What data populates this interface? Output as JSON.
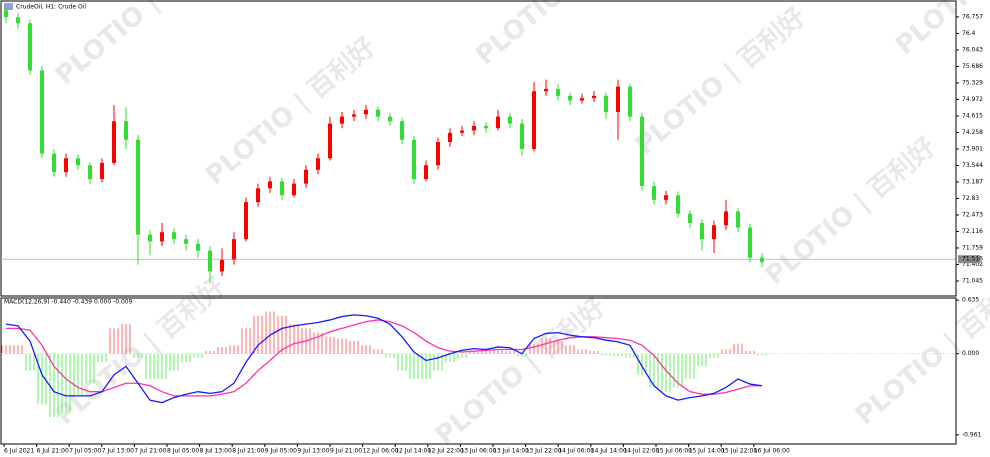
{
  "watermark": "PLOTIO | 百利好",
  "chart_data": [
    {
      "type": "candlestick",
      "title": "CrudeOil, H1:  Crude Oil",
      "up_color": "#ff0000",
      "down_color": "#33dd33",
      "open": [
        76.9,
        76.75,
        76.62,
        75.6,
        73.8,
        73.4,
        73.7,
        73.55,
        73.25,
        73.6,
        74.5,
        74.1,
        72.05,
        71.9,
        72.1,
        71.95,
        71.85,
        71.7,
        71.25,
        71.5,
        71.95,
        72.75,
        73.05,
        73.2,
        72.9,
        73.15,
        73.45,
        73.7,
        74.45,
        74.6,
        74.65,
        74.75,
        74.6,
        74.5,
        74.1,
        73.25,
        73.55,
        74.05,
        74.25,
        74.3,
        74.4,
        74.35,
        74.6,
        74.45,
        73.9,
        75.15,
        75.2,
        75.05,
        74.95,
        75.0,
        75.05,
        74.7,
        75.25,
        74.6,
        73.1,
        72.8,
        72.9,
        72.5,
        72.3,
        71.95,
        72.25,
        72.55,
        72.2,
        71.55
      ],
      "high": [
        76.98,
        76.85,
        76.7,
        75.7,
        73.9,
        73.8,
        73.78,
        73.62,
        73.7,
        74.85,
        74.8,
        74.2,
        72.15,
        72.3,
        72.2,
        72.05,
        71.95,
        71.8,
        71.75,
        72.1,
        72.85,
        73.15,
        73.3,
        73.28,
        73.25,
        73.55,
        73.8,
        74.6,
        74.7,
        74.75,
        74.85,
        74.82,
        74.68,
        74.58,
        74.18,
        73.65,
        74.15,
        74.35,
        74.4,
        74.5,
        74.48,
        74.75,
        74.68,
        74.55,
        75.35,
        75.4,
        75.3,
        75.12,
        75.1,
        75.15,
        75.12,
        75.4,
        75.32,
        74.68,
        73.2,
        73.0,
        72.98,
        72.58,
        72.38,
        72.35,
        72.8,
        72.62,
        72.28,
        71.65
      ],
      "low": [
        76.62,
        76.5,
        75.5,
        73.7,
        73.3,
        73.3,
        73.45,
        73.15,
        73.18,
        73.55,
        73.9,
        71.4,
        71.6,
        71.8,
        71.85,
        71.7,
        71.55,
        71.0,
        71.15,
        71.4,
        71.9,
        72.65,
        72.95,
        72.8,
        72.85,
        73.05,
        73.35,
        73.65,
        74.35,
        74.5,
        74.55,
        74.5,
        74.4,
        74.0,
        73.15,
        73.2,
        73.45,
        73.95,
        74.18,
        74.2,
        74.25,
        74.3,
        74.35,
        73.75,
        73.85,
        75.05,
        74.95,
        74.85,
        74.88,
        74.92,
        74.55,
        74.1,
        74.5,
        73.0,
        72.7,
        72.7,
        72.4,
        72.2,
        71.7,
        71.65,
        72.15,
        72.1,
        71.45,
        71.35
      ],
      "close": [
        76.75,
        76.62,
        75.6,
        73.8,
        73.4,
        73.7,
        73.55,
        73.25,
        73.6,
        74.5,
        74.1,
        72.05,
        71.9,
        72.1,
        71.95,
        71.85,
        71.7,
        71.25,
        71.5,
        71.95,
        72.75,
        73.05,
        73.2,
        72.9,
        73.15,
        73.45,
        73.7,
        74.45,
        74.6,
        74.65,
        74.75,
        74.6,
        74.5,
        74.1,
        73.25,
        73.55,
        74.05,
        74.25,
        74.3,
        74.4,
        74.35,
        74.6,
        74.45,
        73.9,
        75.15,
        75.2,
        75.05,
        74.95,
        75.0,
        75.05,
        74.7,
        75.25,
        74.6,
        73.1,
        72.8,
        72.9,
        72.5,
        72.3,
        71.95,
        72.25,
        72.55,
        72.2,
        71.55,
        71.45
      ],
      "current_price": 71.516,
      "ylim": [
        70.72,
        77.08
      ],
      "yticks": [
        76.757,
        76.4,
        76.043,
        75.686,
        75.329,
        74.972,
        74.615,
        74.258,
        73.901,
        73.544,
        73.187,
        72.83,
        72.473,
        72.116,
        71.759,
        71.402,
        71.045
      ]
    },
    {
      "type": "macd",
      "title": "MACD(12,26,9) -0.440 -0.439 0.000 -0.009",
      "positive_color": "#ff6b6b",
      "negative_color": "#66ee66",
      "macd_color": "#1a1aff",
      "signal_color": "#ff33aa",
      "histogram": [
        0.1,
        0.1,
        -0.2,
        -0.6,
        -0.75,
        -0.7,
        -0.5,
        -0.35,
        -0.1,
        0.3,
        0.35,
        -0.05,
        -0.3,
        -0.3,
        -0.2,
        -0.1,
        -0.05,
        0.03,
        0.08,
        0.1,
        0.3,
        0.45,
        0.5,
        0.45,
        0.35,
        0.3,
        0.25,
        0.2,
        0.18,
        0.15,
        0.1,
        0.05,
        -0.05,
        -0.2,
        -0.3,
        -0.3,
        -0.2,
        -0.1,
        -0.05,
        0.02,
        0.03,
        0.04,
        0.03,
        -0.03,
        0.12,
        0.18,
        0.15,
        0.1,
        0.05,
        0.03,
        -0.02,
        -0.03,
        -0.05,
        -0.25,
        -0.4,
        -0.45,
        -0.4,
        -0.3,
        -0.15,
        -0.05,
        0.05,
        0.12,
        0.03,
        -0.02
      ],
      "macd": [
        0.35,
        0.33,
        0.15,
        -0.25,
        -0.45,
        -0.5,
        -0.5,
        -0.5,
        -0.45,
        -0.25,
        -0.15,
        -0.35,
        -0.55,
        -0.58,
        -0.52,
        -0.48,
        -0.45,
        -0.47,
        -0.45,
        -0.35,
        -0.1,
        0.1,
        0.22,
        0.3,
        0.33,
        0.35,
        0.37,
        0.4,
        0.44,
        0.46,
        0.45,
        0.42,
        0.35,
        0.2,
        0.02,
        -0.08,
        -0.05,
        0.0,
        0.04,
        0.06,
        0.05,
        0.08,
        0.07,
        0.0,
        0.18,
        0.24,
        0.25,
        0.22,
        0.2,
        0.19,
        0.16,
        0.14,
        0.1,
        -0.15,
        -0.38,
        -0.5,
        -0.55,
        -0.52,
        -0.5,
        -0.47,
        -0.4,
        -0.3,
        -0.36,
        -0.38
      ],
      "signal": [
        0.3,
        0.3,
        0.28,
        0.1,
        -0.15,
        -0.3,
        -0.4,
        -0.45,
        -0.45,
        -0.4,
        -0.35,
        -0.35,
        -0.38,
        -0.45,
        -0.5,
        -0.5,
        -0.5,
        -0.5,
        -0.48,
        -0.45,
        -0.35,
        -0.2,
        -0.08,
        0.05,
        0.12,
        0.15,
        0.2,
        0.26,
        0.3,
        0.34,
        0.38,
        0.4,
        0.38,
        0.33,
        0.25,
        0.15,
        0.07,
        0.03,
        0.02,
        0.03,
        0.04,
        0.05,
        0.05,
        0.05,
        0.08,
        0.12,
        0.16,
        0.19,
        0.2,
        0.2,
        0.19,
        0.18,
        0.16,
        0.1,
        -0.02,
        -0.2,
        -0.35,
        -0.45,
        -0.48,
        -0.48,
        -0.46,
        -0.42,
        -0.38,
        -0.38
      ],
      "ylim": [
        -1.07,
        0.66
      ],
      "yticks": [
        0.635,
        {
          "value": 0,
          "label": "0.000"
        },
        -0.961
      ],
      "x_labels": [
        "6 Jul 2021",
        "6 Jul 21:00",
        "7 Jul 05:00",
        "7 Jul 13:00",
        "7 Jul 21:00",
        "8 Jul 05:00",
        "8 Jul 13:00",
        "8 Jul 21:00",
        "9 Jul 05:00",
        "9 Jul 13:00",
        "9 Jul 21:00",
        "12 Jul 06:00",
        "12 Jul 14:00",
        "12 Jul 22:00",
        "13 Jul 06:00",
        "13 Jul 14:00",
        "13 Jul 22:00",
        "14 Jul 06:00",
        "14 Jul 14:00",
        "14 Jul 22:00",
        "15 Jul 06:00",
        "15 Jul 14:00",
        "15 Jul 22:00",
        "16 Jul 06:00"
      ]
    }
  ]
}
